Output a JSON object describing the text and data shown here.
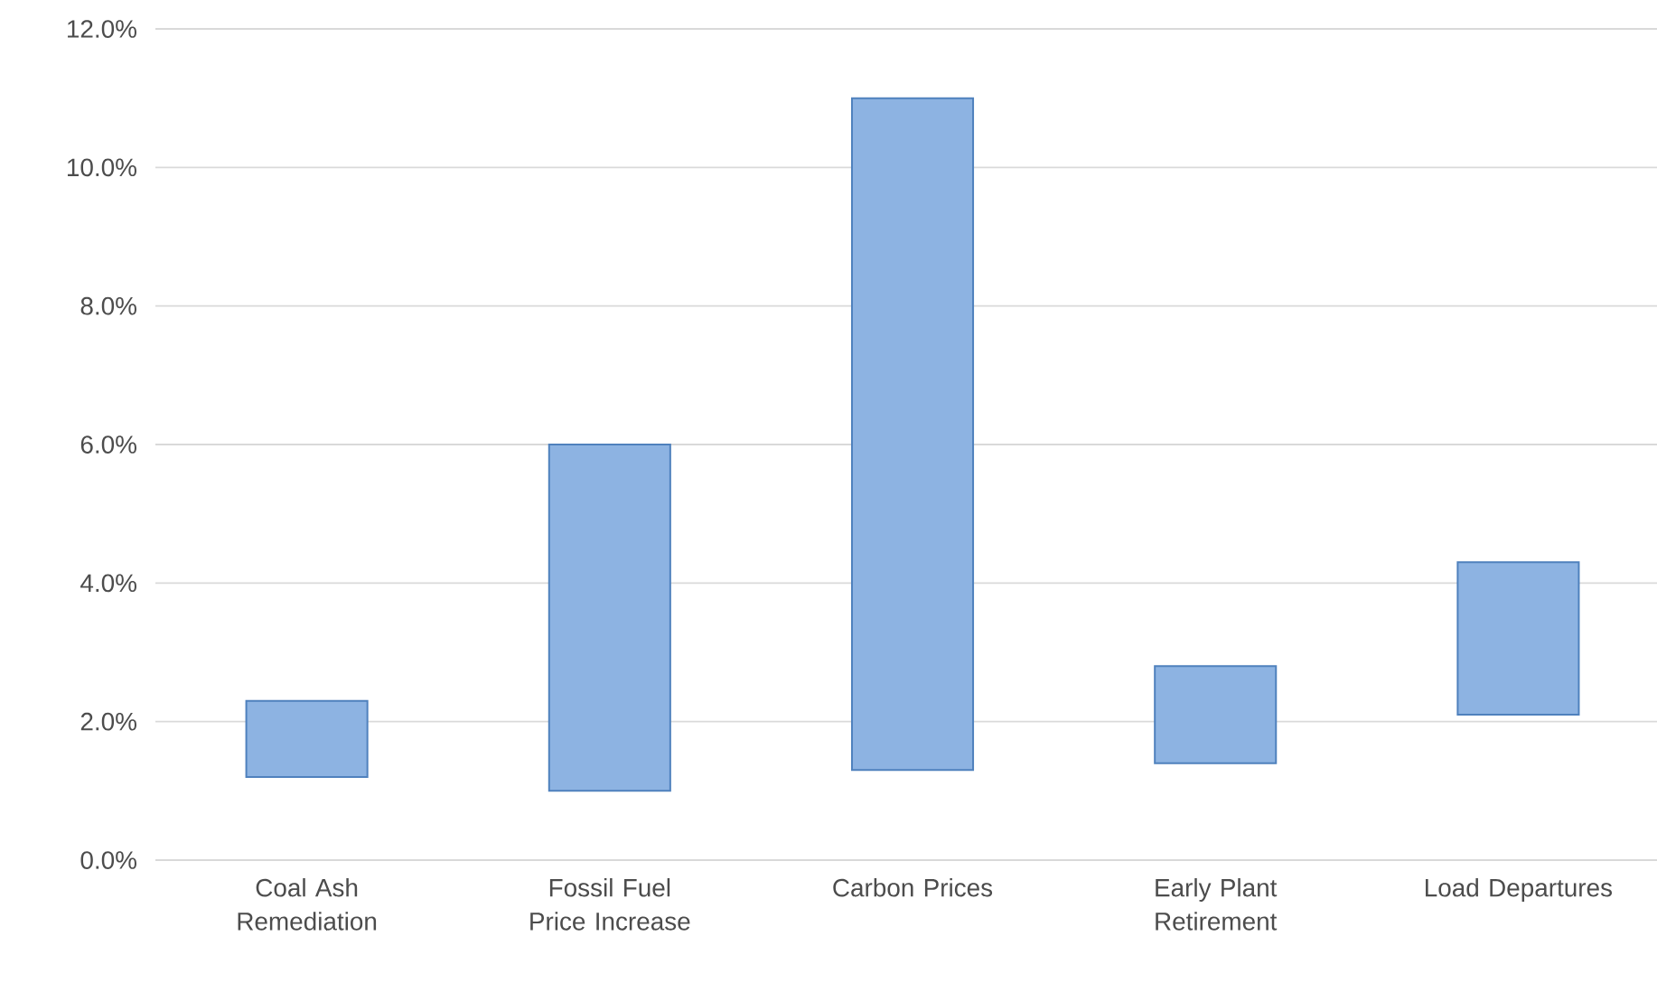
{
  "chart_data": {
    "type": "bar",
    "categories": [
      "Coal Ash Remediation",
      "Fossil Fuel Price Increase",
      "Carbon Prices",
      "Early Plant Retirement",
      "Load Departures"
    ],
    "base": [
      1.2,
      1.0,
      1.3,
      1.4,
      2.1
    ],
    "values": [
      1.1,
      5.0,
      9.7,
      1.4,
      2.2
    ],
    "color": "#8db3e2",
    "ylim": [
      0,
      12
    ],
    "yticks": [
      {
        "value": 0,
        "label": "0.0%"
      },
      {
        "value": 2,
        "label": "2.0%"
      },
      {
        "value": 4,
        "label": "4.0%"
      },
      {
        "value": 6,
        "label": "6.0%"
      },
      {
        "value": 8,
        "label": "8.0%"
      },
      {
        "value": 10,
        "label": "10.0%"
      },
      {
        "value": 12,
        "label": "12.0%"
      }
    ],
    "grid": "y"
  }
}
